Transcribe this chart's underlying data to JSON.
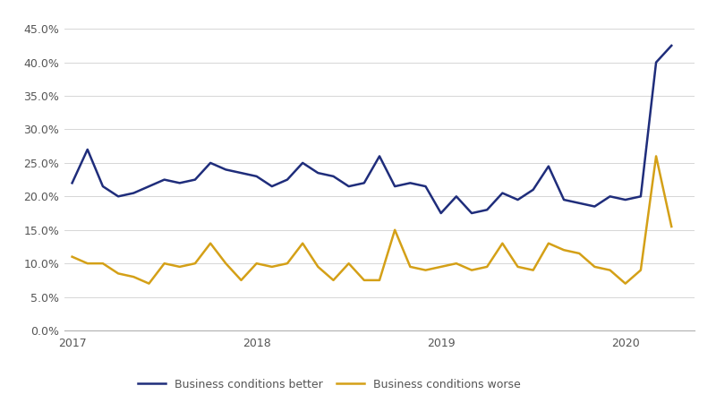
{
  "better_x": [
    0,
    1,
    2,
    3,
    4,
    5,
    6,
    7,
    8,
    9,
    10,
    11,
    12,
    13,
    14,
    15,
    16,
    17,
    18,
    19,
    20,
    21,
    22,
    23,
    24,
    25,
    26,
    27,
    28,
    29,
    30,
    31,
    32,
    33,
    34,
    35,
    36,
    37,
    38,
    39
  ],
  "better_y": [
    0.22,
    0.27,
    0.215,
    0.2,
    0.205,
    0.215,
    0.225,
    0.22,
    0.225,
    0.25,
    0.24,
    0.235,
    0.23,
    0.215,
    0.225,
    0.25,
    0.235,
    0.23,
    0.215,
    0.22,
    0.26,
    0.215,
    0.22,
    0.215,
    0.175,
    0.2,
    0.175,
    0.18,
    0.205,
    0.195,
    0.21,
    0.245,
    0.195,
    0.19,
    0.185,
    0.2,
    0.195,
    0.2,
    0.4,
    0.425
  ],
  "worse_x": [
    0,
    1,
    2,
    3,
    4,
    5,
    6,
    7,
    8,
    9,
    10,
    11,
    12,
    13,
    14,
    15,
    16,
    17,
    18,
    19,
    20,
    21,
    22,
    23,
    24,
    25,
    26,
    27,
    28,
    29,
    30,
    31,
    32,
    33,
    34,
    35,
    36,
    37,
    38,
    39
  ],
  "worse_y": [
    0.11,
    0.1,
    0.1,
    0.085,
    0.08,
    0.07,
    0.1,
    0.095,
    0.1,
    0.13,
    0.1,
    0.075,
    0.1,
    0.095,
    0.1,
    0.13,
    0.095,
    0.075,
    0.1,
    0.075,
    0.075,
    0.15,
    0.095,
    0.09,
    0.095,
    0.1,
    0.09,
    0.095,
    0.13,
    0.095,
    0.09,
    0.13,
    0.12,
    0.115,
    0.095,
    0.09,
    0.07,
    0.09,
    0.26,
    0.155
  ],
  "better_color": "#1f2d7b",
  "worse_color": "#d4a017",
  "better_label": "Business conditions better",
  "worse_label": "Business conditions worse",
  "ylim": [
    0.0,
    0.475
  ],
  "yticks": [
    0.0,
    0.05,
    0.1,
    0.15,
    0.2,
    0.25,
    0.3,
    0.35,
    0.4,
    0.45
  ],
  "xtick_labels": [
    "2017",
    "2018",
    "2019",
    "2020"
  ],
  "xtick_positions": [
    0,
    12,
    24,
    36
  ],
  "xlim_left": -0.5,
  "xlim_right": 40.5,
  "background_color": "#ffffff",
  "grid_color": "#d0d0d0",
  "linewidth": 1.8,
  "legend_fontsize": 9,
  "tick_labelsize": 9
}
